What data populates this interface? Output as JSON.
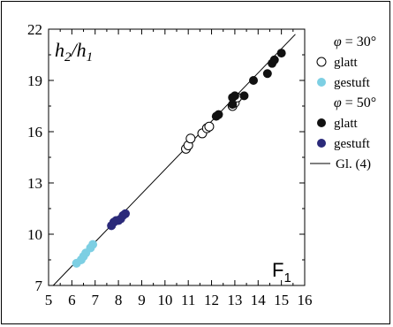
{
  "chart_data": {
    "type": "scatter",
    "title": "",
    "xlabel": "F_1",
    "ylabel": "h_2/h_1",
    "xlim": [
      5,
      16
    ],
    "ylim": [
      7,
      22
    ],
    "x_ticks": [
      "5",
      "6",
      "7",
      "8",
      "9",
      "10",
      "11",
      "12",
      "13",
      "14",
      "15",
      "16"
    ],
    "y_ticks": [
      "7",
      "10",
      "13",
      "16",
      "19",
      "22"
    ],
    "legend": {
      "placement": "right",
      "groups": [
        {
          "header": "φ = 30°",
          "entries": [
            {
              "label": "glatt",
              "marker": "open-circle",
              "color": "#000000"
            },
            {
              "label": "gestuft",
              "marker": "filled-circle",
              "color": "#7dcfe3"
            }
          ]
        },
        {
          "header": "φ = 50°",
          "entries": [
            {
              "label": "glatt",
              "marker": "filled-circle",
              "color": "#111111"
            },
            {
              "label": "gestuft",
              "marker": "filled-circle",
              "color": "#2b2a7a"
            }
          ]
        },
        {
          "header": "",
          "entries": [
            {
              "label": "Gl. (4)",
              "marker": "line",
              "color": "#000000"
            }
          ]
        }
      ]
    },
    "series": [
      {
        "name": "φ = 30° glatt",
        "marker": "open",
        "color": "#000000",
        "points": [
          [
            10.9,
            15.0
          ],
          [
            11.0,
            15.2
          ],
          [
            11.1,
            15.6
          ],
          [
            11.6,
            15.9
          ],
          [
            11.8,
            16.2
          ],
          [
            11.9,
            16.3
          ],
          [
            12.9,
            17.5
          ],
          [
            13.0,
            17.7
          ],
          [
            13.1,
            18.0
          ]
        ]
      },
      {
        "name": "φ = 30° gestuft",
        "marker": "filled",
        "color": "#7dcfe3",
        "points": [
          [
            6.2,
            8.3
          ],
          [
            6.4,
            8.5
          ],
          [
            6.5,
            8.7
          ],
          [
            6.6,
            8.9
          ],
          [
            6.8,
            9.2
          ],
          [
            6.9,
            9.4
          ]
        ]
      },
      {
        "name": "φ = 50° glatt",
        "marker": "filled",
        "color": "#111111",
        "points": [
          [
            12.2,
            16.9
          ],
          [
            12.3,
            17.0
          ],
          [
            12.9,
            17.6
          ],
          [
            12.9,
            18.0
          ],
          [
            13.0,
            18.1
          ],
          [
            13.4,
            18.1
          ],
          [
            13.8,
            19.0
          ],
          [
            14.4,
            19.4
          ],
          [
            14.6,
            20.0
          ],
          [
            14.7,
            20.2
          ],
          [
            15.0,
            20.6
          ]
        ]
      },
      {
        "name": "φ = 50° gestuft",
        "marker": "filled",
        "color": "#2b2a7a",
        "points": [
          [
            7.7,
            10.5
          ],
          [
            7.8,
            10.7
          ],
          [
            7.9,
            10.8
          ],
          [
            8.0,
            10.8
          ],
          [
            8.1,
            10.9
          ],
          [
            8.2,
            11.1
          ],
          [
            8.3,
            11.2
          ]
        ]
      }
    ],
    "reference_line": {
      "name": "Gl. (4)",
      "points": [
        [
          5.2,
          7.0
        ],
        [
          15.6,
          21.7
        ]
      ]
    },
    "grid": false
  }
}
